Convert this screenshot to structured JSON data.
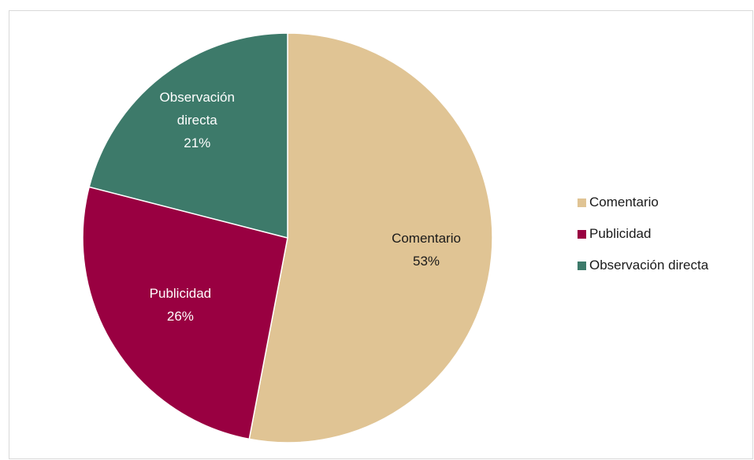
{
  "chart_data": {
    "type": "pie",
    "slices": [
      {
        "name": "Comentario",
        "value": 53,
        "label": "53%",
        "color": "#e0c494"
      },
      {
        "name": "Publicidad",
        "value": 26,
        "label": "26%",
        "color": "#990041"
      },
      {
        "name": "Observación directa",
        "value": 21,
        "label": "21%",
        "color": "#3d7a6a"
      }
    ],
    "legend_position": "right"
  }
}
